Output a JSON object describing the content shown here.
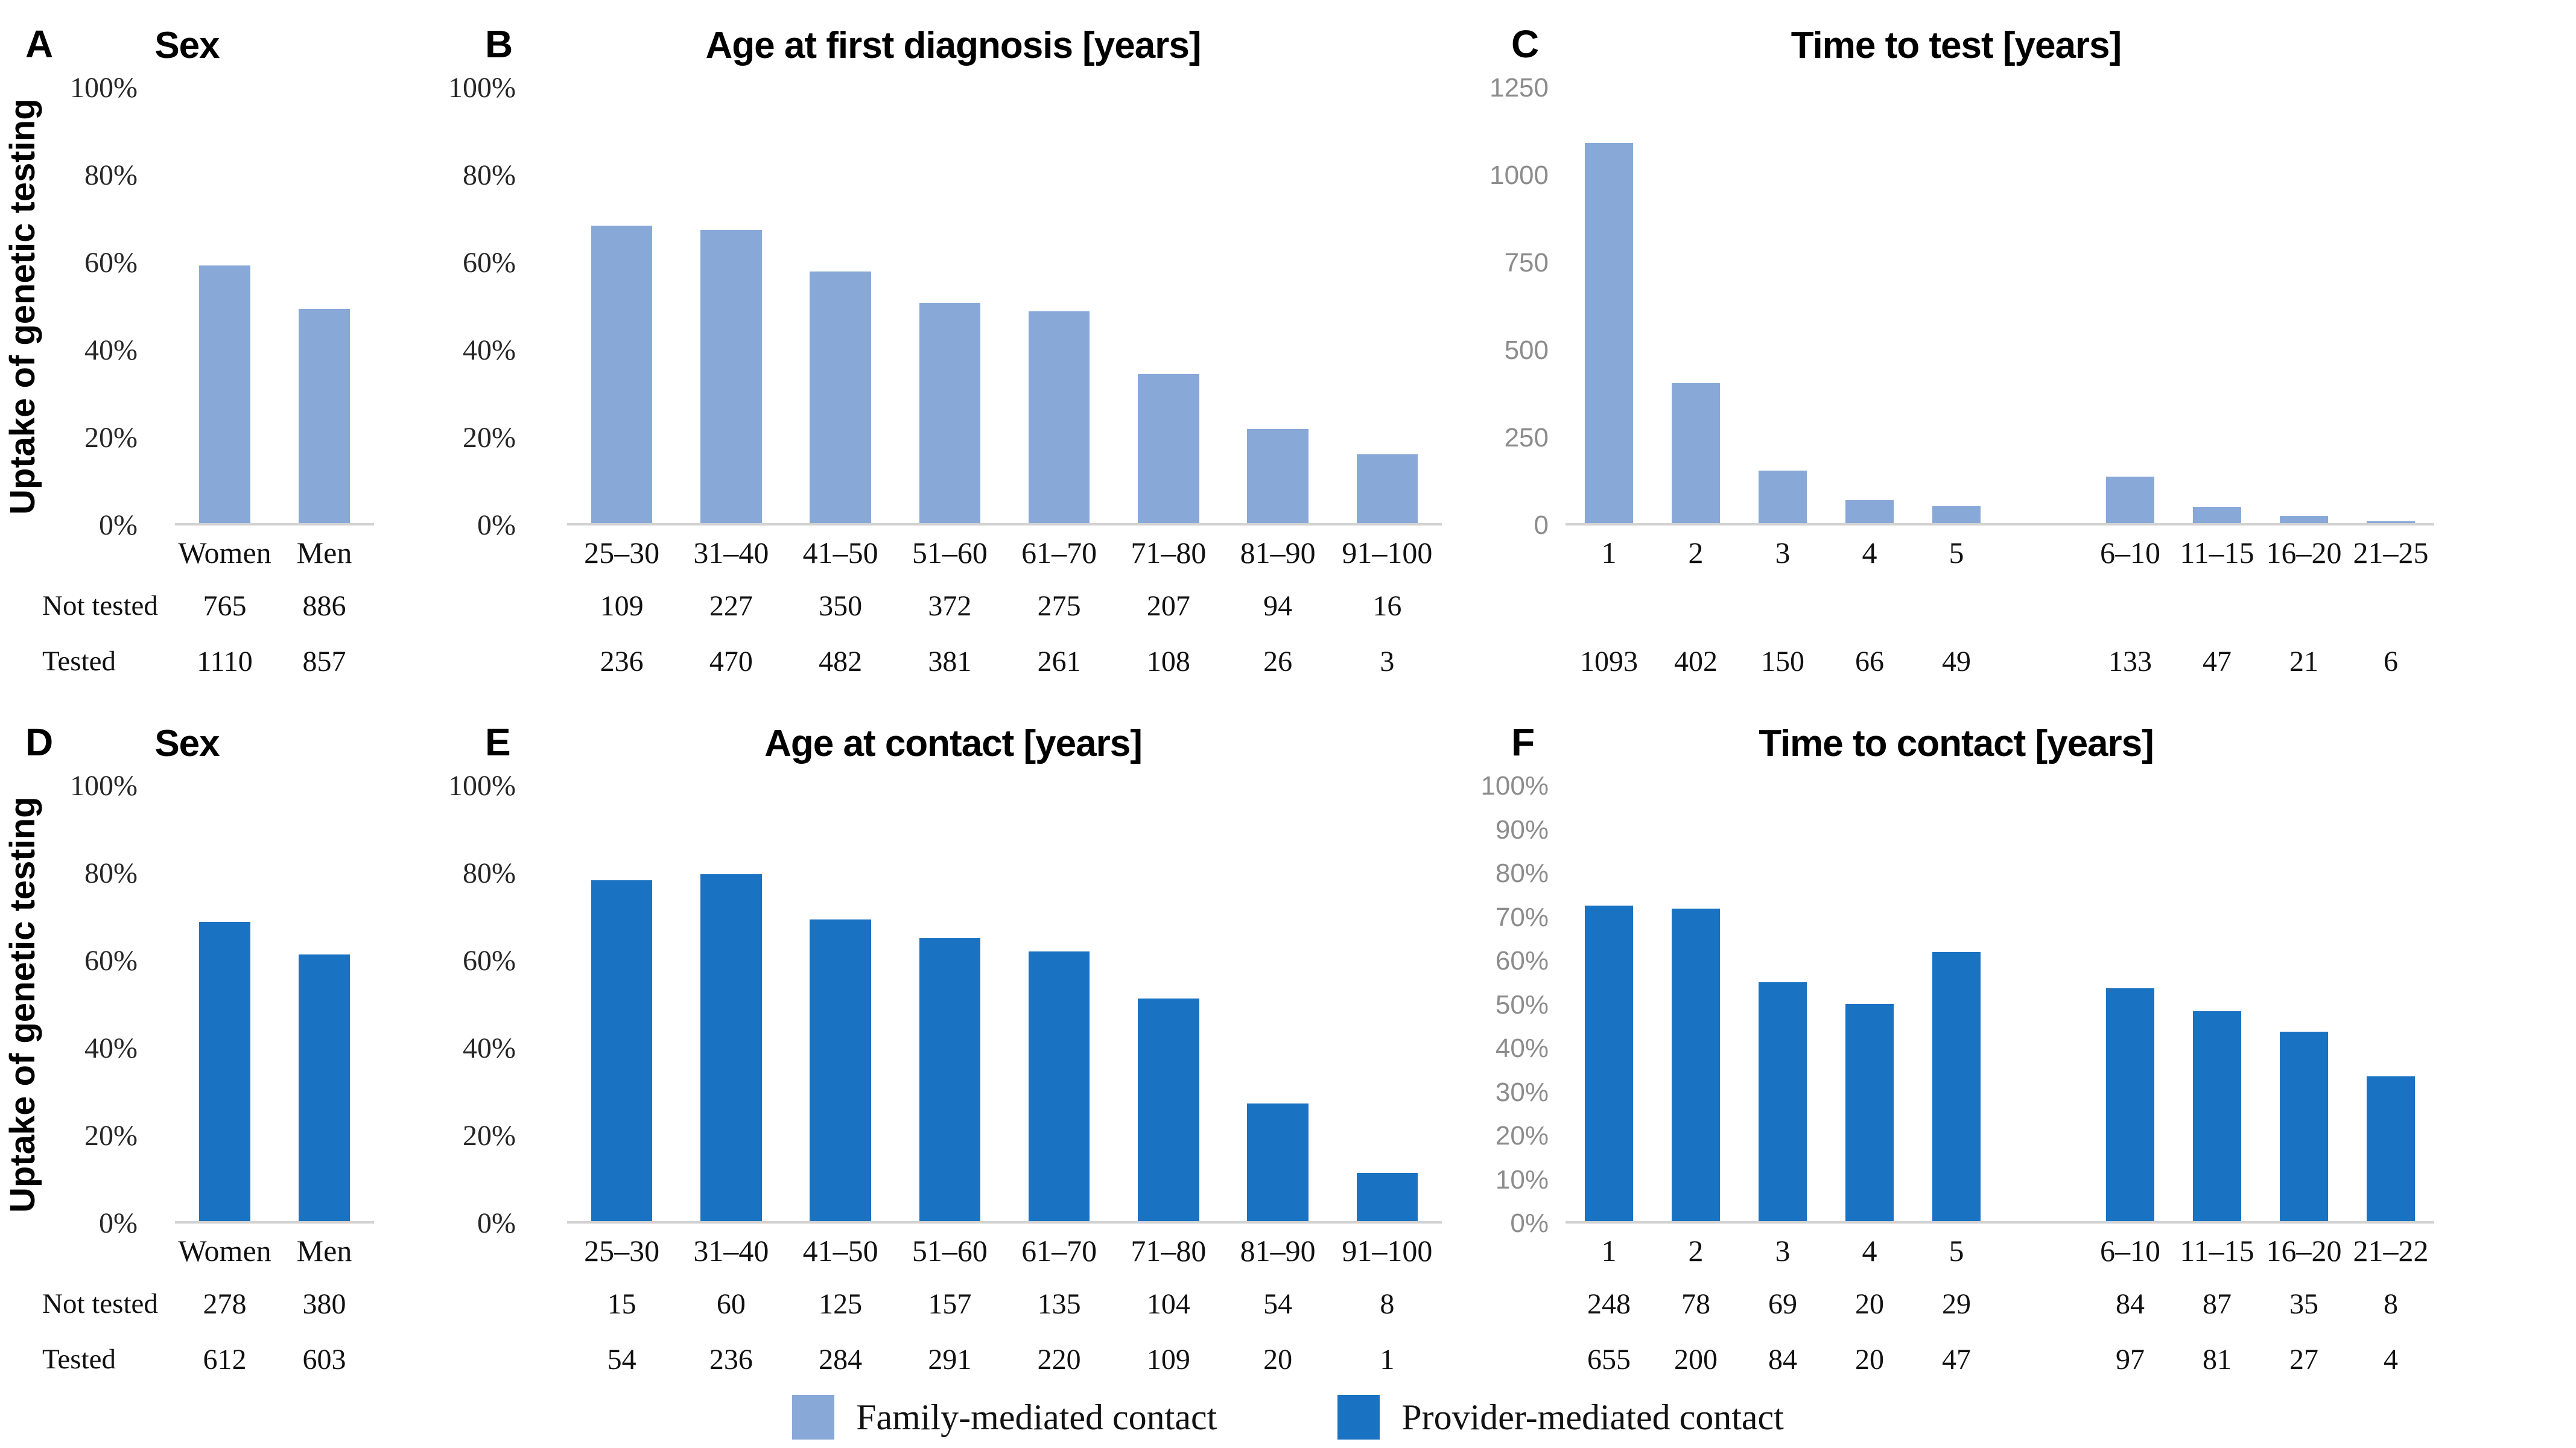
{
  "figure": {
    "y_axis_title": "Uptake of genetic testing",
    "row_labels": [
      "Not tested",
      "Tested"
    ],
    "colors": {
      "family_mediated": "#88A8D8",
      "provider_mediated": "#1A72C2",
      "axis_line": "#D2D2D2",
      "gray_tick_text": "#8C8C8C"
    },
    "legend": {
      "items": [
        {
          "label": "Family-mediated contact",
          "color": "#88A8D8"
        },
        {
          "label": "Provider-mediated contact",
          "color": "#1A72C2"
        }
      ]
    }
  },
  "chart_data": [
    {
      "id": "A",
      "panel_letter": "A",
      "type": "bar",
      "title": "Sex",
      "series": "Family-mediated contact",
      "bar_color": "#88A8D8",
      "show_y_axis_title": true,
      "show_row_labels": true,
      "y_unit": "%",
      "ymax": 100,
      "tick_style": "serif",
      "y_ticks": [
        {
          "label": "0%",
          "value": 0
        },
        {
          "label": "20%",
          "value": 20
        },
        {
          "label": "40%",
          "value": 40
        },
        {
          "label": "60%",
          "value": 60
        },
        {
          "label": "80%",
          "value": 80
        },
        {
          "label": "100%",
          "value": 100
        }
      ],
      "categories": [
        "Women",
        "Men"
      ],
      "values": [
        59.2,
        49.2
      ],
      "table_rows": [
        [
          765,
          886
        ],
        [
          1110,
          857
        ]
      ]
    },
    {
      "id": "B",
      "panel_letter": "B",
      "type": "bar",
      "title": "Age at first diagnosis [years]",
      "series": "Family-mediated contact",
      "bar_color": "#88A8D8",
      "show_y_axis_title": false,
      "show_row_labels": false,
      "y_unit": "%",
      "ymax": 100,
      "tick_style": "serif",
      "y_ticks": [
        {
          "label": "0%",
          "value": 0
        },
        {
          "label": "20%",
          "value": 20
        },
        {
          "label": "40%",
          "value": 40
        },
        {
          "label": "60%",
          "value": 60
        },
        {
          "label": "80%",
          "value": 80
        },
        {
          "label": "100%",
          "value": 100
        }
      ],
      "categories": [
        "25–30",
        "31–40",
        "41–50",
        "51–60",
        "61–70",
        "71–80",
        "81–90",
        "91–100"
      ],
      "values": [
        68.4,
        67.4,
        57.9,
        50.6,
        48.7,
        34.3,
        21.7,
        15.8
      ],
      "table_rows": [
        [
          109,
          227,
          350,
          372,
          275,
          207,
          94,
          16
        ],
        [
          236,
          470,
          482,
          381,
          261,
          108,
          26,
          3
        ]
      ]
    },
    {
      "id": "C",
      "panel_letter": "C",
      "type": "bar",
      "title": "Time to test [years]",
      "series": "Family-mediated contact",
      "bar_color": "#88A8D8",
      "show_y_axis_title": false,
      "show_row_labels": false,
      "y_unit": "count",
      "ymax": 1250,
      "tick_style": "gray",
      "y_ticks": [
        {
          "label": "0",
          "value": 0
        },
        {
          "label": "250",
          "value": 250
        },
        {
          "label": "500",
          "value": 500
        },
        {
          "label": "750",
          "value": 750
        },
        {
          "label": "1000",
          "value": 1000
        },
        {
          "label": "1250",
          "value": 1250
        }
      ],
      "categories": [
        "1",
        "2",
        "3",
        "4",
        "5",
        "",
        "6–10",
        "11–15",
        "16–20",
        "21–25"
      ],
      "values": [
        1093,
        402,
        150,
        66,
        49,
        null,
        133,
        47,
        21,
        6
      ],
      "table_rows": [
        null,
        [
          1093,
          402,
          150,
          66,
          49,
          null,
          133,
          47,
          21,
          6
        ]
      ]
    },
    {
      "id": "D",
      "panel_letter": "D",
      "type": "bar",
      "title": "Sex",
      "series": "Provider-mediated contact",
      "bar_color": "#1A72C2",
      "show_y_axis_title": true,
      "show_row_labels": true,
      "y_unit": "%",
      "ymax": 100,
      "tick_style": "serif",
      "y_ticks": [
        {
          "label": "0%",
          "value": 0
        },
        {
          "label": "20%",
          "value": 20
        },
        {
          "label": "40%",
          "value": 40
        },
        {
          "label": "60%",
          "value": 60
        },
        {
          "label": "80%",
          "value": 80
        },
        {
          "label": "100%",
          "value": 100
        }
      ],
      "categories": [
        "Women",
        "Men"
      ],
      "values": [
        68.8,
        61.3
      ],
      "table_rows": [
        [
          278,
          380
        ],
        [
          612,
          603
        ]
      ]
    },
    {
      "id": "E",
      "panel_letter": "E",
      "type": "bar",
      "title": "Age at contact [years]",
      "series": "Provider-mediated contact",
      "bar_color": "#1A72C2",
      "show_y_axis_title": false,
      "show_row_labels": false,
      "y_unit": "%",
      "ymax": 100,
      "tick_style": "serif",
      "y_ticks": [
        {
          "label": "0%",
          "value": 0
        },
        {
          "label": "20%",
          "value": 20
        },
        {
          "label": "40%",
          "value": 40
        },
        {
          "label": "60%",
          "value": 60
        },
        {
          "label": "80%",
          "value": 80
        },
        {
          "label": "100%",
          "value": 100
        }
      ],
      "categories": [
        "25–30",
        "31–40",
        "41–50",
        "51–60",
        "61–70",
        "71–80",
        "81–90",
        "91–100"
      ],
      "values": [
        78.3,
        79.7,
        69.4,
        65.0,
        62.0,
        51.2,
        27.0,
        11.1
      ],
      "table_rows": [
        [
          15,
          60,
          125,
          157,
          135,
          104,
          54,
          8
        ],
        [
          54,
          236,
          284,
          291,
          220,
          109,
          20,
          1
        ]
      ]
    },
    {
      "id": "F",
      "panel_letter": "F",
      "type": "bar",
      "title": "Time to contact [years]",
      "series": "Provider-mediated contact",
      "bar_color": "#1A72C2",
      "show_y_axis_title": false,
      "show_row_labels": false,
      "y_unit": "%",
      "ymax": 100,
      "tick_style": "gray",
      "y_ticks": [
        {
          "label": "0%",
          "value": 0
        },
        {
          "label": "10%",
          "value": 10
        },
        {
          "label": "20%",
          "value": 20
        },
        {
          "label": "30%",
          "value": 30
        },
        {
          "label": "40%",
          "value": 40
        },
        {
          "label": "50%",
          "value": 50
        },
        {
          "label": "60%",
          "value": 60
        },
        {
          "label": "70%",
          "value": 70
        },
        {
          "label": "80%",
          "value": 80
        },
        {
          "label": "90%",
          "value": 90
        },
        {
          "label": "100%",
          "value": 100
        }
      ],
      "categories": [
        "1",
        "2",
        "3",
        "4",
        "5",
        "",
        "6–10",
        "11–15",
        "16–20",
        "21–22"
      ],
      "values": [
        72.5,
        71.9,
        54.9,
        50.0,
        61.8,
        null,
        53.6,
        48.2,
        43.5,
        33.3
      ],
      "table_rows": [
        [
          248,
          78,
          69,
          20,
          29,
          null,
          84,
          87,
          35,
          8
        ],
        [
          655,
          200,
          84,
          20,
          47,
          null,
          97,
          81,
          27,
          4
        ]
      ]
    }
  ]
}
